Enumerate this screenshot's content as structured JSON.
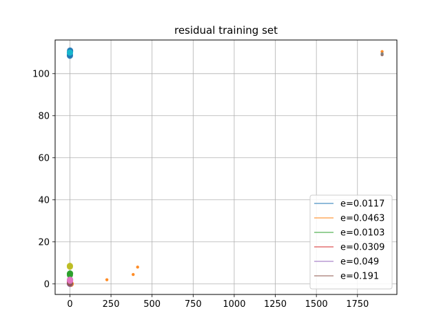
{
  "chart_data": {
    "type": "scatter",
    "title": "residual training set",
    "xlabel": "",
    "ylabel": "",
    "xlim": [
      -90,
      1990
    ],
    "ylim": [
      -5,
      116
    ],
    "xticks": [
      0,
      250,
      500,
      750,
      1000,
      1250,
      1500,
      1750
    ],
    "yticks": [
      0,
      20,
      40,
      60,
      80,
      100
    ],
    "grid": true,
    "legend_position": "lower-right",
    "series": [
      {
        "name": "e=0.0117",
        "color": "#1f77b4",
        "points": [
          [
            0,
            110
          ],
          [
            0,
            109
          ],
          [
            1,
            111
          ],
          [
            0,
            108.5
          ],
          [
            1,
            110.5
          ]
        ]
      },
      {
        "name": "e=0.0463",
        "color": "#ff7f0e",
        "points": [
          [
            5,
            0
          ],
          [
            225,
            2
          ],
          [
            385,
            4.5
          ],
          [
            412,
            8
          ],
          [
            1900,
            110.5
          ]
        ]
      },
      {
        "name": "e=0.0103",
        "color": "#2ca02c",
        "points": [
          [
            0,
            4.8
          ],
          [
            0,
            4.2
          ],
          [
            1,
            5
          ]
        ]
      },
      {
        "name": "e=0.0309",
        "color": "#d62728",
        "points": [
          [
            0,
            1
          ],
          [
            0,
            0.5
          ]
        ]
      },
      {
        "name": "e=0.049",
        "color": "#9467bd",
        "points": [
          [
            0,
            0
          ],
          [
            0,
            1.5
          ],
          [
            1,
            2
          ]
        ]
      },
      {
        "name": "e=0.191",
        "color": "#8c564b",
        "points": [
          [
            0,
            0.3
          ],
          [
            1900,
            109
          ]
        ]
      },
      {
        "name": "",
        "color": "#bcbd22",
        "points": [
          [
            0,
            8.2
          ],
          [
            0,
            8.6
          ]
        ]
      },
      {
        "name": "",
        "color": "#e377c2",
        "points": [
          [
            0,
            2
          ],
          [
            1,
            1.5
          ]
        ]
      },
      {
        "name": "",
        "color": "#7f7f7f",
        "points": [
          [
            1900,
            109.5
          ]
        ]
      },
      {
        "name": "",
        "color": "#17becf",
        "points": [
          [
            0,
            110
          ]
        ]
      }
    ]
  }
}
